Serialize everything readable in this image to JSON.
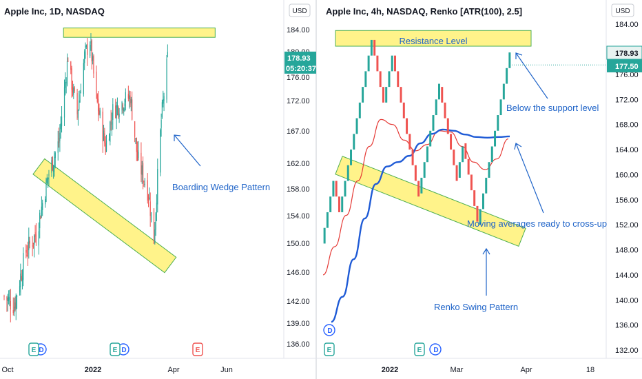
{
  "colors": {
    "up": "#26a69a",
    "down": "#ef5350",
    "highlight_fill": "#fff176",
    "highlight_stroke": "#4caf50",
    "annotation": "#1e63c8",
    "ma_fast": "#e53935",
    "ma_slow": "#1f5bd6",
    "price_tag": "#26a69a",
    "event_green": "#26a69a",
    "event_blue": "#2962ff",
    "event_red": "#ef5350"
  },
  "chart_data": [
    {
      "type": "candlestick",
      "title": "Apple Inc, 1D, NASDAQ",
      "currency": "USD",
      "y_ticks": [
        136.0,
        139.0,
        142.0,
        146.0,
        150.0,
        154.0,
        158.0,
        162.0,
        167.0,
        172.0,
        176.0,
        180.0,
        184.0
      ],
      "y_tick_labels": [
        "136.00",
        "139.00",
        "142.00",
        "146.00",
        "150.00",
        "154.00",
        "158.00",
        "162.00",
        "167.00",
        "172.00",
        "176.00",
        "180.00",
        "184.00"
      ],
      "x_tick_labels": [
        "Oct",
        "2022",
        "Apr",
        "Jun"
      ],
      "ylim": [
        134,
        190
      ],
      "price_tag": {
        "value": "178.93",
        "countdown": "05:20:37"
      },
      "zones": [
        {
          "kind": "resistance",
          "price_range": [
            182.6,
            184.3
          ],
          "date_range": [
            "2021-12-05",
            "2022-05-20"
          ]
        },
        {
          "kind": "falling-wedge",
          "from": [
            "2021-11-08",
            161.5
          ],
          "to": [
            "2022-04-01",
            147.0
          ]
        }
      ],
      "annotations": [
        {
          "text": "Boarding Wedge Pattern"
        }
      ],
      "series": [
        {
          "kind": "ohlc-daily",
          "start_date": "2021-10-01",
          "end_date": "2022-03-31",
          "close_points": [
            [
              "2021-10-01",
              142.6
            ],
            [
              "2021-10-12",
              141.5
            ],
            [
              "2021-10-25",
              148.9
            ],
            [
              "2021-11-05",
              151.3
            ],
            [
              "2021-11-19",
              160.5
            ],
            [
              "2021-11-30",
              165.3
            ],
            [
              "2021-12-10",
              179.4
            ],
            [
              "2021-12-13",
              175.7
            ],
            [
              "2021-12-20",
              169.8
            ],
            [
              "2021-12-28",
              179.3
            ],
            [
              "2022-01-03",
              182.0
            ],
            [
              "2022-01-10",
              172.2
            ],
            [
              "2022-01-20",
              164.5
            ],
            [
              "2022-01-28",
              170.3
            ],
            [
              "2022-02-10",
              172.1
            ],
            [
              "2022-02-16",
              172.6
            ],
            [
              "2022-02-24",
              162.7
            ],
            [
              "2022-03-08",
              157.4
            ],
            [
              "2022-03-14",
              150.6
            ],
            [
              "2022-03-22",
              168.8
            ],
            [
              "2022-03-29",
              178.9
            ]
          ]
        }
      ]
    },
    {
      "type": "renko",
      "title": "Apple Inc, 4h, NASDAQ, Renko [ATR(100), 2.5]",
      "currency": "USD",
      "y_ticks": [
        132.0,
        136.0,
        140.0,
        144.0,
        148.0,
        152.0,
        156.0,
        160.0,
        164.0,
        168.0,
        172.0,
        176.0,
        180.0,
        184.0
      ],
      "y_tick_labels": [
        "132.00",
        "136.00",
        "140.00",
        "144.00",
        "148.00",
        "152.00",
        "156.00",
        "160.00",
        "164.00",
        "168.00",
        "172.00",
        "176.00",
        "180.00",
        "184.00"
      ],
      "x_tick_labels": [
        "2022",
        "Mar",
        "Apr",
        "18"
      ],
      "ylim": [
        130,
        186
      ],
      "box_size": 2.5,
      "price_tags": [
        "178.93",
        "177.50"
      ],
      "zones": [
        {
          "kind": "resistance",
          "label": "Resistance Level",
          "price_range": [
            180.5,
            183.0
          ]
        },
        {
          "kind": "channel",
          "from_price": 161.5,
          "to_price": 150.0
        }
      ],
      "annotations": [
        {
          "text": "Below the support level"
        },
        {
          "text": "Moving averages ready to cross-up"
        },
        {
          "text": "Renko Swing Pattern"
        }
      ],
      "series": [
        {
          "kind": "renko-path",
          "pivots": [
            149.0,
            159.0,
            154.0,
            181.5,
            171.5,
            179.0,
            157.0,
            174.0,
            159.5,
            165.0,
            152.0,
            180.0
          ]
        },
        {
          "kind": "moving-average-fast",
          "values": [
            144.0,
            148.5,
            153.5,
            159.0,
            164.5,
            168.8,
            168.0,
            165.5,
            163.8,
            164.8,
            167.0,
            166.8,
            164.5,
            162.0,
            160.8,
            162.5,
            165.7
          ]
        },
        {
          "kind": "moving-average-slow",
          "values": [
            136.5,
            140.5,
            146.5,
            153.0,
            158.5,
            161.3,
            162.0,
            163.0,
            165.0,
            166.5,
            167.2,
            167.0,
            166.4,
            166.0,
            165.9,
            166.0,
            166.1
          ]
        }
      ]
    }
  ]
}
